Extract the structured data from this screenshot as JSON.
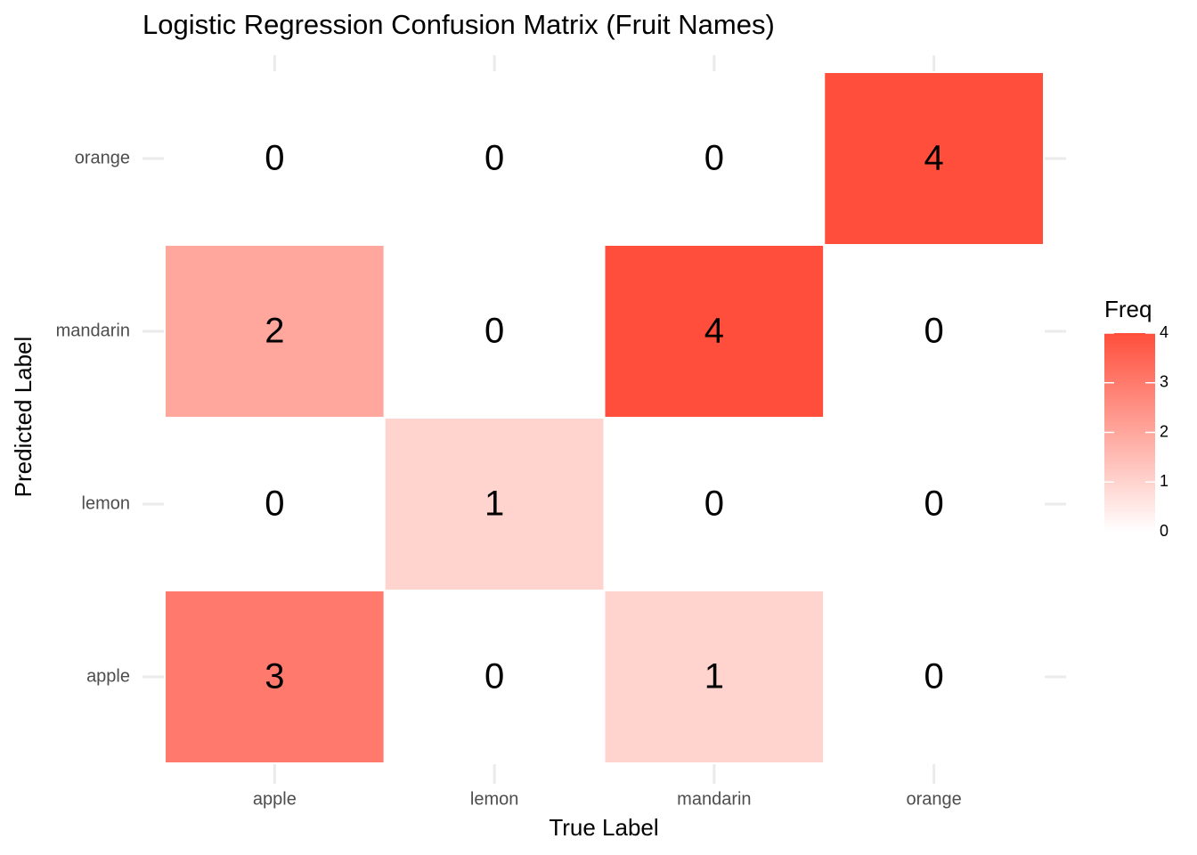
{
  "chart_data": {
    "type": "heatmap",
    "title": "Logistic Regression Confusion Matrix (Fruit Names)",
    "x_label": "True Label",
    "y_label": "Predicted Label",
    "x_categories": [
      "apple",
      "lemon",
      "mandarin",
      "orange"
    ],
    "y_categories": [
      "apple",
      "lemon",
      "mandarin",
      "orange"
    ],
    "values": [
      [
        3,
        0,
        1,
        0
      ],
      [
        0,
        1,
        0,
        0
      ],
      [
        2,
        0,
        4,
        0
      ],
      [
        0,
        0,
        0,
        4
      ]
    ],
    "grid": true,
    "legend": {
      "title": "Freq",
      "limits": [
        0,
        4
      ],
      "ticks": [
        0,
        1,
        2,
        3,
        4
      ],
      "low_color": "#ffffff",
      "high_color": "#ff4e3b",
      "position": "right"
    }
  }
}
